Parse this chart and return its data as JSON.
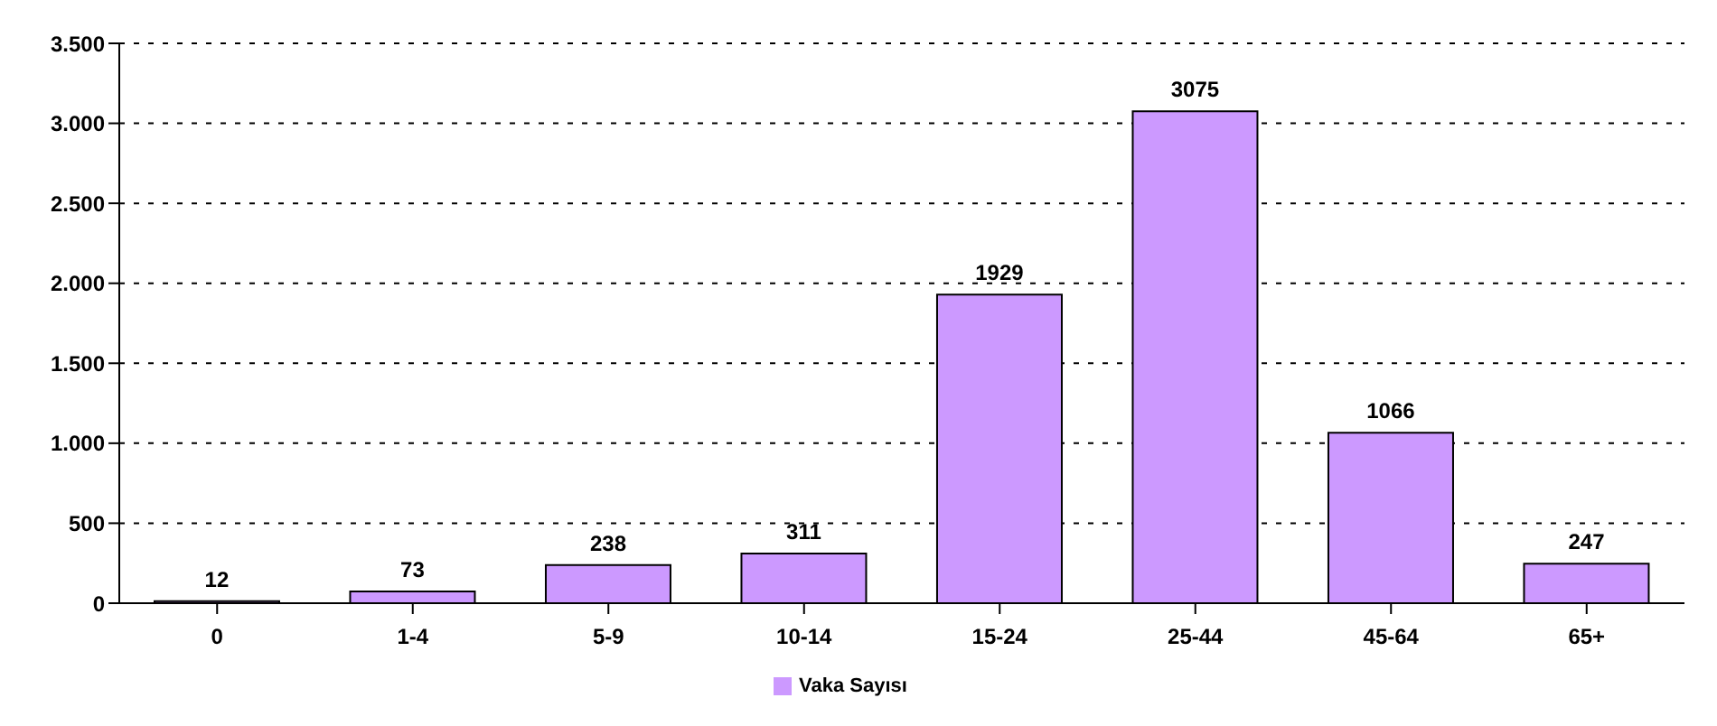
{
  "chart_data": {
    "type": "bar",
    "categories": [
      "0",
      "1-4",
      "5-9",
      "10-14",
      "15-24",
      "25-44",
      "45-64",
      "65+"
    ],
    "series": [
      {
        "name": "Vaka Sayısı",
        "color": "#cc99ff",
        "values": [
          12,
          73,
          238,
          311,
          1929,
          3075,
          1066,
          247
        ]
      }
    ],
    "ylim": [
      0,
      3500
    ],
    "yticks": [
      0,
      500,
      {
        "value": 1000,
        "label": "1.000"
      },
      {
        "value": 1500,
        "label": "1.500"
      },
      {
        "value": 2000,
        "label": "2.000"
      },
      {
        "value": 2500,
        "label": "2.500"
      },
      {
        "value": 3000,
        "label": "3.000"
      },
      {
        "value": 3500,
        "label": "3.500"
      }
    ],
    "grid": "y",
    "legend": "bottom",
    "data_labels": true
  }
}
